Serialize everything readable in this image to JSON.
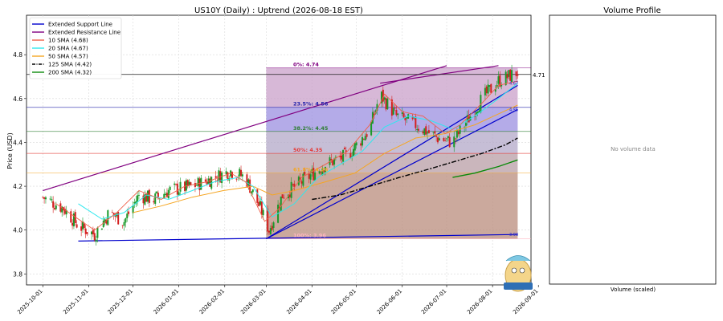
{
  "chart_data": [
    {
      "type": "candlestick",
      "title": "US10Y (Daily) : Uptrend (2026-08-18 EST)",
      "ylabel": "Price (USD)",
      "xlabel": "",
      "ylim": [
        3.75,
        4.98
      ],
      "xlim": [
        "2025-09-20",
        "2026-08-27"
      ],
      "yticks": [
        "3.8",
        "4.0",
        "4.2",
        "4.4",
        "4.6",
        "4.8"
      ],
      "yticks_values": [
        3.8,
        4.0,
        4.2,
        4.4,
        4.6,
        4.8
      ],
      "xticks": [
        "2025-10-01",
        "2025-11-01",
        "2025-12-01",
        "2026-01-01",
        "2026-02-01",
        "2026-03-01",
        "2026-04-01",
        "2026-05-01",
        "2026-06-01",
        "2026-07-01",
        "2026-08-01",
        "2026-09-01"
      ],
      "grid": true,
      "legend_position": "top-left",
      "legend": [
        {
          "label": "Extended Support Line",
          "color": "#0000cc",
          "style": "solid"
        },
        {
          "label": "Extended Resistance Line",
          "color": "#800080",
          "style": "solid"
        },
        {
          "label": "10 SMA (4.68)",
          "color": "#f0604a",
          "style": "solid"
        },
        {
          "label": "20 SMA (4.67)",
          "color": "#2ee8ee",
          "style": "solid"
        },
        {
          "label": "50 SMA (4.57)",
          "color": "#f5a623",
          "style": "solid"
        },
        {
          "label": "125 SMA (4.42)",
          "color": "#000000",
          "style": "dashdot"
        },
        {
          "label": "200 SMA (4.32)",
          "color": "#0a8a0a",
          "style": "solid"
        }
      ],
      "fib_levels": [
        {
          "label": "0%: 4.74",
          "value": 4.74,
          "color": "#800080"
        },
        {
          "label": "23.5%: 4.56",
          "value": 4.56,
          "color": "#2222aa"
        },
        {
          "label": "38.2%: 4.45",
          "value": 4.45,
          "color": "#2e7d32"
        },
        {
          "label": "50%: 4.35",
          "value": 4.35,
          "color": "#e53935"
        },
        {
          "label": "61.8%: 4.26",
          "value": 4.26,
          "color": "#f5a623"
        },
        {
          "label": "100%: 3.96",
          "value": 3.96,
          "color": "#ffb6c1"
        }
      ],
      "fib_start": "2026-03-01",
      "fib_end": "2026-08-18",
      "last_price_label": "4.71",
      "last_price": 4.71,
      "right_labels": [
        {
          "text": "4.67",
          "value": 4.67
        },
        {
          "text": "4.55",
          "value": 4.55
        },
        {
          "text": "3.98",
          "value": 3.98
        }
      ],
      "support_line": [
        [
          "2026-03-01",
          3.96
        ],
        [
          "2026-08-18",
          4.66
        ]
      ],
      "support_line_extended": [
        [
          "2026-03-01",
          3.96
        ],
        [
          "2026-08-18",
          4.55
        ]
      ],
      "support_base": [
        [
          "2025-10-25",
          3.95
        ],
        [
          "2026-08-18",
          3.98
        ]
      ],
      "resistance_line": [
        [
          "2025-10-01",
          4.18
        ],
        [
          "2026-07-01",
          4.75
        ]
      ],
      "resistance_line_2": [
        [
          "2026-05-17",
          4.67
        ],
        [
          "2026-08-05",
          4.75
        ]
      ],
      "sma200": [
        [
          "2026-07-05",
          4.24
        ],
        [
          "2026-07-20",
          4.26
        ],
        [
          "2026-08-05",
          4.29
        ],
        [
          "2026-08-18",
          4.32
        ]
      ],
      "sma125": [
        [
          "2026-04-01",
          4.14
        ],
        [
          "2026-04-20",
          4.16
        ],
        [
          "2026-05-10",
          4.2
        ],
        [
          "2026-05-30",
          4.24
        ],
        [
          "2026-06-20",
          4.28
        ],
        [
          "2026-07-10",
          4.32
        ],
        [
          "2026-07-25",
          4.35
        ],
        [
          "2026-08-10",
          4.39
        ],
        [
          "2026-08-18",
          4.42
        ]
      ],
      "sma50": [
        [
          "2025-12-01",
          4.08
        ],
        [
          "2025-12-20",
          4.11
        ],
        [
          "2026-01-10",
          4.15
        ],
        [
          "2026-01-31",
          4.18
        ],
        [
          "2026-02-20",
          4.2
        ],
        [
          "2026-03-05",
          4.16
        ],
        [
          "2026-03-20",
          4.18
        ],
        [
          "2026-04-10",
          4.22
        ],
        [
          "2026-04-30",
          4.26
        ],
        [
          "2026-05-20",
          4.35
        ],
        [
          "2026-06-10",
          4.42
        ],
        [
          "2026-06-30",
          4.44
        ],
        [
          "2026-07-20",
          4.48
        ],
        [
          "2026-08-05",
          4.53
        ],
        [
          "2026-08-18",
          4.57
        ]
      ],
      "sma20": [
        [
          "2025-10-25",
          4.12
        ],
        [
          "2025-11-10",
          4.05
        ],
        [
          "2025-11-25",
          4.08
        ],
        [
          "2025-12-10",
          4.16
        ],
        [
          "2025-12-25",
          4.14
        ],
        [
          "2026-01-10",
          4.18
        ],
        [
          "2026-01-25",
          4.22
        ],
        [
          "2026-02-10",
          4.24
        ],
        [
          "2026-02-20",
          4.2
        ],
        [
          "2026-03-05",
          4.06
        ],
        [
          "2026-03-20",
          4.12
        ],
        [
          "2026-04-05",
          4.24
        ],
        [
          "2026-04-20",
          4.3
        ],
        [
          "2026-05-05",
          4.36
        ],
        [
          "2026-05-20",
          4.47
        ],
        [
          "2026-06-05",
          4.52
        ],
        [
          "2026-06-20",
          4.5
        ],
        [
          "2026-07-05",
          4.46
        ],
        [
          "2026-07-20",
          4.52
        ],
        [
          "2026-08-05",
          4.6
        ],
        [
          "2026-08-18",
          4.67
        ]
      ],
      "sma10": [
        [
          "2025-10-10",
          4.12
        ],
        [
          "2025-10-25",
          4.05
        ],
        [
          "2025-11-05",
          4.0
        ],
        [
          "2025-11-20",
          4.08
        ],
        [
          "2025-12-05",
          4.18
        ],
        [
          "2025-12-20",
          4.14
        ],
        [
          "2026-01-05",
          4.2
        ],
        [
          "2026-01-20",
          4.22
        ],
        [
          "2026-02-05",
          4.26
        ],
        [
          "2026-02-15",
          4.22
        ],
        [
          "2026-02-28",
          4.04
        ],
        [
          "2026-03-10",
          4.1
        ],
        [
          "2026-03-25",
          4.24
        ],
        [
          "2026-04-10",
          4.3
        ],
        [
          "2026-04-25",
          4.36
        ],
        [
          "2026-05-10",
          4.48
        ],
        [
          "2026-05-20",
          4.62
        ],
        [
          "2026-06-01",
          4.54
        ],
        [
          "2026-06-15",
          4.52
        ],
        [
          "2026-06-30",
          4.44
        ],
        [
          "2026-07-10",
          4.48
        ],
        [
          "2026-07-25",
          4.58
        ],
        [
          "2026-08-05",
          4.66
        ],
        [
          "2026-08-18",
          4.68
        ]
      ],
      "candle_anchors": [
        [
          "2025-10-01",
          4.15
        ],
        [
          "2025-10-15",
          4.1
        ],
        [
          "2025-10-25",
          4.02
        ],
        [
          "2025-11-05",
          3.98
        ],
        [
          "2025-11-15",
          4.08
        ],
        [
          "2025-11-25",
          4.04
        ],
        [
          "2025-12-05",
          4.16
        ],
        [
          "2025-12-15",
          4.14
        ],
        [
          "2025-12-25",
          4.18
        ],
        [
          "2026-01-10",
          4.2
        ],
        [
          "2026-01-25",
          4.24
        ],
        [
          "2026-02-05",
          4.27
        ],
        [
          "2026-02-15",
          4.24
        ],
        [
          "2026-02-25",
          4.1
        ],
        [
          "2026-03-03",
          4.0
        ],
        [
          "2026-03-12",
          4.16
        ],
        [
          "2026-03-25",
          4.22
        ],
        [
          "2026-04-10",
          4.3
        ],
        [
          "2026-04-25",
          4.34
        ],
        [
          "2026-05-10",
          4.46
        ],
        [
          "2026-05-17",
          4.62
        ],
        [
          "2026-05-28",
          4.52
        ],
        [
          "2026-06-10",
          4.48
        ],
        [
          "2026-06-25",
          4.42
        ],
        [
          "2026-07-05",
          4.4
        ],
        [
          "2026-07-15",
          4.5
        ],
        [
          "2026-07-25",
          4.6
        ],
        [
          "2026-08-05",
          4.68
        ],
        [
          "2026-08-18",
          4.72
        ]
      ]
    },
    {
      "type": "bar",
      "title": "Volume Profile",
      "xlabel": "Volume (scaled)",
      "message": "No volume data"
    }
  ]
}
